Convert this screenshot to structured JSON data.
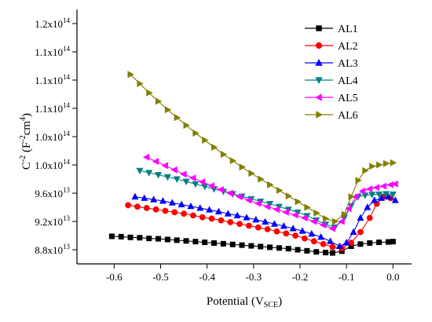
{
  "chart_data": {
    "type": "line",
    "xlabel": {
      "main": "Potential (V",
      "sub": "SCE",
      "close": ")"
    },
    "ylabel": {
      "c": "C",
      "exp1": "-2",
      "mid": " (F",
      "exp2": "-2",
      "cm": "cm",
      "exp3": "4",
      "close": ")"
    },
    "xlim": [
      -0.68,
      0.04
    ],
    "ylim": [
      86000000000000.0,
      122000000000000.0
    ],
    "x_ticks": [
      -0.6,
      -0.5,
      -0.4,
      -0.3,
      -0.2,
      -0.1,
      0.0
    ],
    "x_tick_labels": [
      "-0.6",
      "-0.5",
      "-0.4",
      "-0.3",
      "-0.2",
      "-0.1",
      "0.0"
    ],
    "y_ticks": [
      88000000000000.0,
      92000000000000.0,
      96000000000000.0,
      100000000000000.0,
      104000000000000.0,
      108000000000000.0,
      112000000000000.0,
      116000000000000.0,
      120000000000000.0
    ],
    "y_tick_labels": [
      {
        "base": "8.8x10",
        "exp": "13"
      },
      {
        "base": "9.2x10",
        "exp": "13"
      },
      {
        "base": "9.6x10",
        "exp": "13"
      },
      {
        "base": "1.0x10",
        "exp": "14"
      },
      {
        "base": "1.0x10",
        "exp": "14"
      },
      {
        "base": "1.1x10",
        "exp": "14"
      },
      {
        "base": "1.1x10",
        "exp": "14"
      },
      {
        "base": "1.1x10",
        "exp": "14"
      },
      {
        "base": "1.2x10",
        "exp": "14"
      }
    ],
    "legend_position": "top-right",
    "series": [
      {
        "name": "AL1",
        "color": "#000000",
        "marker": "square",
        "points": [
          [
            -0.605,
            89900000000000.0
          ],
          [
            -0.585,
            89850000000000.0
          ],
          [
            -0.565,
            89750000000000.0
          ],
          [
            -0.545,
            89700000000000.0
          ],
          [
            -0.525,
            89600000000000.0
          ],
          [
            -0.505,
            89550000000000.0
          ],
          [
            -0.485,
            89450000000000.0
          ],
          [
            -0.465,
            89350000000000.0
          ],
          [
            -0.445,
            89250000000000.0
          ],
          [
            -0.425,
            89150000000000.0
          ],
          [
            -0.405,
            89050000000000.0
          ],
          [
            -0.385,
            88950000000000.0
          ],
          [
            -0.365,
            88850000000000.0
          ],
          [
            -0.345,
            88750000000000.0
          ],
          [
            -0.325,
            88650000000000.0
          ],
          [
            -0.305,
            88550000000000.0
          ],
          [
            -0.285,
            88450000000000.0
          ],
          [
            -0.265,
            88350000000000.0
          ],
          [
            -0.245,
            88250000000000.0
          ],
          [
            -0.225,
            88150000000000.0
          ],
          [
            -0.205,
            88000000000000.0
          ],
          [
            -0.185,
            87850000000000.0
          ],
          [
            -0.165,
            87700000000000.0
          ],
          [
            -0.145,
            87600000000000.0
          ],
          [
            -0.13,
            87550000000000.0
          ],
          [
            -0.11,
            87800000000000.0
          ],
          [
            -0.09,
            88500000000000.0
          ],
          [
            -0.07,
            88800000000000.0
          ],
          [
            -0.05,
            88950000000000.0
          ],
          [
            -0.03,
            89050000000000.0
          ],
          [
            -0.01,
            89100000000000.0
          ],
          [
            0.0,
            89150000000000.0
          ]
        ]
      },
      {
        "name": "AL2",
        "color": "#ff0000",
        "marker": "circle",
        "points": [
          [
            -0.57,
            94300000000000.0
          ],
          [
            -0.55,
            94100000000000.0
          ],
          [
            -0.53,
            93900000000000.0
          ],
          [
            -0.51,
            93700000000000.0
          ],
          [
            -0.49,
            93500000000000.0
          ],
          [
            -0.47,
            93300000000000.0
          ],
          [
            -0.45,
            93100000000000.0
          ],
          [
            -0.43,
            92850000000000.0
          ],
          [
            -0.41,
            92600000000000.0
          ],
          [
            -0.39,
            92400000000000.0
          ],
          [
            -0.37,
            92150000000000.0
          ],
          [
            -0.35,
            91900000000000.0
          ],
          [
            -0.33,
            91650000000000.0
          ],
          [
            -0.31,
            91400000000000.0
          ],
          [
            -0.29,
            91150000000000.0
          ],
          [
            -0.27,
            90900000000000.0
          ],
          [
            -0.25,
            90600000000000.0
          ],
          [
            -0.23,
            90300000000000.0
          ],
          [
            -0.21,
            90000000000000.0
          ],
          [
            -0.19,
            89600000000000.0
          ],
          [
            -0.17,
            89200000000000.0
          ],
          [
            -0.15,
            88800000000000.0
          ],
          [
            -0.13,
            88400000000000.0
          ],
          [
            -0.11,
            88200000000000.0
          ],
          [
            -0.09,
            89000000000000.0
          ],
          [
            -0.07,
            90500000000000.0
          ],
          [
            -0.05,
            92500000000000.0
          ],
          [
            -0.035,
            94500000000000.0
          ],
          [
            -0.02,
            95500000000000.0
          ],
          [
            -0.005,
            95300000000000.0
          ]
        ]
      },
      {
        "name": "AL3",
        "color": "#0000ff",
        "marker": "triangle-up",
        "points": [
          [
            -0.555,
            95500000000000.0
          ],
          [
            -0.535,
            95300000000000.0
          ],
          [
            -0.515,
            95100000000000.0
          ],
          [
            -0.495,
            94900000000000.0
          ],
          [
            -0.475,
            94650000000000.0
          ],
          [
            -0.455,
            94400000000000.0
          ],
          [
            -0.435,
            94150000000000.0
          ],
          [
            -0.415,
            93900000000000.0
          ],
          [
            -0.395,
            93650000000000.0
          ],
          [
            -0.375,
            93400000000000.0
          ],
          [
            -0.355,
            93100000000000.0
          ],
          [
            -0.335,
            92850000000000.0
          ],
          [
            -0.315,
            92550000000000.0
          ],
          [
            -0.295,
            92250000000000.0
          ],
          [
            -0.275,
            91950000000000.0
          ],
          [
            -0.255,
            91650000000000.0
          ],
          [
            -0.235,
            91350000000000.0
          ],
          [
            -0.215,
            91000000000000.0
          ],
          [
            -0.195,
            90650000000000.0
          ],
          [
            -0.175,
            90250000000000.0
          ],
          [
            -0.155,
            89800000000000.0
          ],
          [
            -0.135,
            89200000000000.0
          ],
          [
            -0.115,
            88500000000000.0
          ],
          [
            -0.1,
            89000000000000.0
          ],
          [
            -0.085,
            90500000000000.0
          ],
          [
            -0.07,
            92500000000000.0
          ],
          [
            -0.055,
            94000000000000.0
          ],
          [
            -0.04,
            95000000000000.0
          ],
          [
            -0.025,
            95300000000000.0
          ],
          [
            -0.01,
            95500000000000.0
          ],
          [
            0.005,
            95000000000000.0
          ]
        ]
      },
      {
        "name": "AL4",
        "color": "#008080",
        "marker": "triangle-down",
        "points": [
          [
            -0.545,
            99200000000000.0
          ],
          [
            -0.525,
            98900000000000.0
          ],
          [
            -0.505,
            98600000000000.0
          ],
          [
            -0.485,
            98300000000000.0
          ],
          [
            -0.465,
            98000000000000.0
          ],
          [
            -0.445,
            97650000000000.0
          ],
          [
            -0.425,
            97300000000000.0
          ],
          [
            -0.405,
            96950000000000.0
          ],
          [
            -0.385,
            96600000000000.0
          ],
          [
            -0.365,
            96250000000000.0
          ],
          [
            -0.345,
            95900000000000.0
          ],
          [
            -0.325,
            95550000000000.0
          ],
          [
            -0.305,
            95200000000000.0
          ],
          [
            -0.285,
            94850000000000.0
          ],
          [
            -0.265,
            94500000000000.0
          ],
          [
            -0.245,
            94100000000000.0
          ],
          [
            -0.225,
            93700000000000.0
          ],
          [
            -0.205,
            93300000000000.0
          ],
          [
            -0.185,
            92800000000000.0
          ],
          [
            -0.165,
            92200000000000.0
          ],
          [
            -0.145,
            91600000000000.0
          ],
          [
            -0.125,
            91200000000000.0
          ],
          [
            -0.105,
            92500000000000.0
          ],
          [
            -0.09,
            94200000000000.0
          ],
          [
            -0.075,
            95500000000000.0
          ],
          [
            -0.06,
            95700000000000.0
          ],
          [
            -0.045,
            95800000000000.0
          ],
          [
            -0.03,
            95850000000000.0
          ],
          [
            -0.015,
            95900000000000.0
          ],
          [
            0.0,
            95850000000000.0
          ]
        ]
      },
      {
        "name": "AL5",
        "color": "#ff00ff",
        "marker": "triangle-left",
        "points": [
          [
            -0.53,
            101100000000000.0
          ],
          [
            -0.51,
            100500000000000.0
          ],
          [
            -0.49,
            99900000000000.0
          ],
          [
            -0.47,
            99300000000000.0
          ],
          [
            -0.45,
            98700000000000.0
          ],
          [
            -0.43,
            98150000000000.0
          ],
          [
            -0.41,
            97600000000000.0
          ],
          [
            -0.39,
            97050000000000.0
          ],
          [
            -0.37,
            96500000000000.0
          ],
          [
            -0.35,
            96000000000000.0
          ],
          [
            -0.33,
            95500000000000.0
          ],
          [
            -0.31,
            95000000000000.0
          ],
          [
            -0.29,
            94550000000000.0
          ],
          [
            -0.27,
            94100000000000.0
          ],
          [
            -0.25,
            93700000000000.0
          ],
          [
            -0.23,
            93300000000000.0
          ],
          [
            -0.21,
            92900000000000.0
          ],
          [
            -0.19,
            92500000000000.0
          ],
          [
            -0.17,
            92000000000000.0
          ],
          [
            -0.15,
            91500000000000.0
          ],
          [
            -0.13,
            91000000000000.0
          ],
          [
            -0.11,
            92000000000000.0
          ],
          [
            -0.095,
            93800000000000.0
          ],
          [
            -0.08,
            95500000000000.0
          ],
          [
            -0.065,
            96300000000000.0
          ],
          [
            -0.05,
            96600000000000.0
          ],
          [
            -0.035,
            96800000000000.0
          ],
          [
            -0.02,
            97000000000000.0
          ],
          [
            -0.005,
            97200000000000.0
          ],
          [
            0.005,
            97300000000000.0
          ]
        ]
      },
      {
        "name": "AL6",
        "color": "#808000",
        "marker": "triangle-right",
        "points": [
          [
            -0.565,
            112800000000000.0
          ],
          [
            -0.545,
            111500000000000.0
          ],
          [
            -0.525,
            110200000000000.0
          ],
          [
            -0.505,
            109000000000000.0
          ],
          [
            -0.485,
            107800000000000.0
          ],
          [
            -0.465,
            106700000000000.0
          ],
          [
            -0.445,
            105600000000000.0
          ],
          [
            -0.425,
            104500000000000.0
          ],
          [
            -0.405,
            103500000000000.0
          ],
          [
            -0.385,
            102500000000000.0
          ],
          [
            -0.365,
            101500000000000.0
          ],
          [
            -0.345,
            100600000000000.0
          ],
          [
            -0.325,
            99700000000000.0
          ],
          [
            -0.305,
            98800000000000.0
          ],
          [
            -0.285,
            98000000000000.0
          ],
          [
            -0.265,
            97200000000000.0
          ],
          [
            -0.245,
            96400000000000.0
          ],
          [
            -0.225,
            95600000000000.0
          ],
          [
            -0.205,
            94800000000000.0
          ],
          [
            -0.185,
            94000000000000.0
          ],
          [
            -0.165,
            93200000000000.0
          ],
          [
            -0.145,
            92400000000000.0
          ],
          [
            -0.125,
            92000000000000.0
          ],
          [
            -0.105,
            93000000000000.0
          ],
          [
            -0.09,
            95500000000000.0
          ],
          [
            -0.075,
            97800000000000.0
          ],
          [
            -0.06,
            99200000000000.0
          ],
          [
            -0.045,
            99800000000000.0
          ],
          [
            -0.03,
            100000000000000.0
          ],
          [
            -0.015,
            100200000000000.0
          ],
          [
            0.0,
            100300000000000.0
          ]
        ]
      }
    ]
  }
}
